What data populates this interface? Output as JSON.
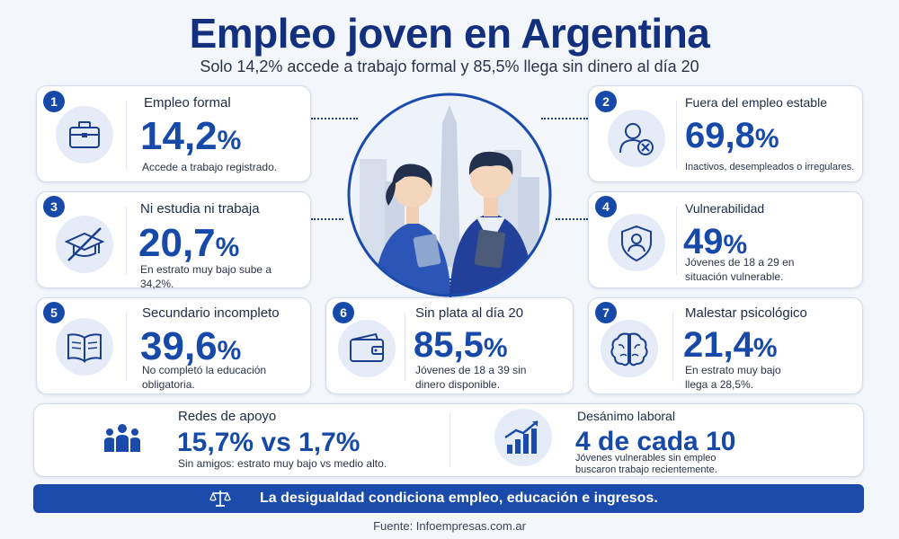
{
  "header": {
    "title": "Empleo joven en Argentina",
    "subtitle": "Solo 14,2% accede a trabajo formal y 85,5% llega sin dinero al día 20"
  },
  "cards": [
    {
      "num": "1",
      "label": "Empleo formal",
      "value": "14,2",
      "unit": "%",
      "desc": "Accede a trabajo registrado.",
      "icon": "briefcase-icon"
    },
    {
      "num": "2",
      "label": "Fuera del empleo estable",
      "value": "69,8",
      "unit": "%",
      "desc": "Inactivos, desempleados o irregulares.",
      "icon": "person-x-icon"
    },
    {
      "num": "3",
      "label": "Ni estudia ni trabaja",
      "value": "20,7",
      "unit": "%",
      "desc": "En estrato muy bajo sube a 34,2%.",
      "icon": "crossed-graduation-cap-icon"
    },
    {
      "num": "4",
      "label": "Vulnerabilidad",
      "value": "49",
      "unit": "%",
      "desc": "Jóvenes de 18 a 29 en situación vulnerable.",
      "icon": "shield-person-icon"
    },
    {
      "num": "5",
      "label": "Secundario incompleto",
      "value": "39,6",
      "unit": "%",
      "desc": "No completó la educación obligatoria.",
      "icon": "open-book-icon"
    },
    {
      "num": "6",
      "label": "Sin plata al día 20",
      "value": "85,5",
      "unit": "%",
      "desc": "Jóvenes de 18 a 39 sin dinero disponible.",
      "icon": "wallet-icon"
    },
    {
      "num": "7",
      "label": "Malestar psicológico",
      "value": "21,4",
      "unit": "%",
      "desc": "En estrato muy bajo llega a 28,5%.",
      "icon": "brain-icon"
    }
  ],
  "bottom": {
    "support": {
      "label": "Redes de apoyo",
      "value": "15,7% vs 1,7%",
      "desc": "Sin amigos: estrato muy bajo vs medio alto.",
      "icon": "people-group-icon"
    },
    "discourage": {
      "label": "Desánimo laboral",
      "value": "4 de cada 10",
      "desc": "Jóvenes vulnerables sin empleo buscaron trabajo recientemente.",
      "icon": "trend-up-chart-icon"
    }
  },
  "banner": {
    "text": "La desigualdad condiciona empleo, educación e ingresos.",
    "icon": "scale-icon"
  },
  "source": "Fuente: Infoempresas.com.ar",
  "illustration": {
    "icon": "young-people-city-illustration"
  },
  "colors": {
    "accent": "#174aa8",
    "title": "#12307e",
    "banner": "#1a4bab",
    "icon_bg": "#e6ecf7"
  }
}
